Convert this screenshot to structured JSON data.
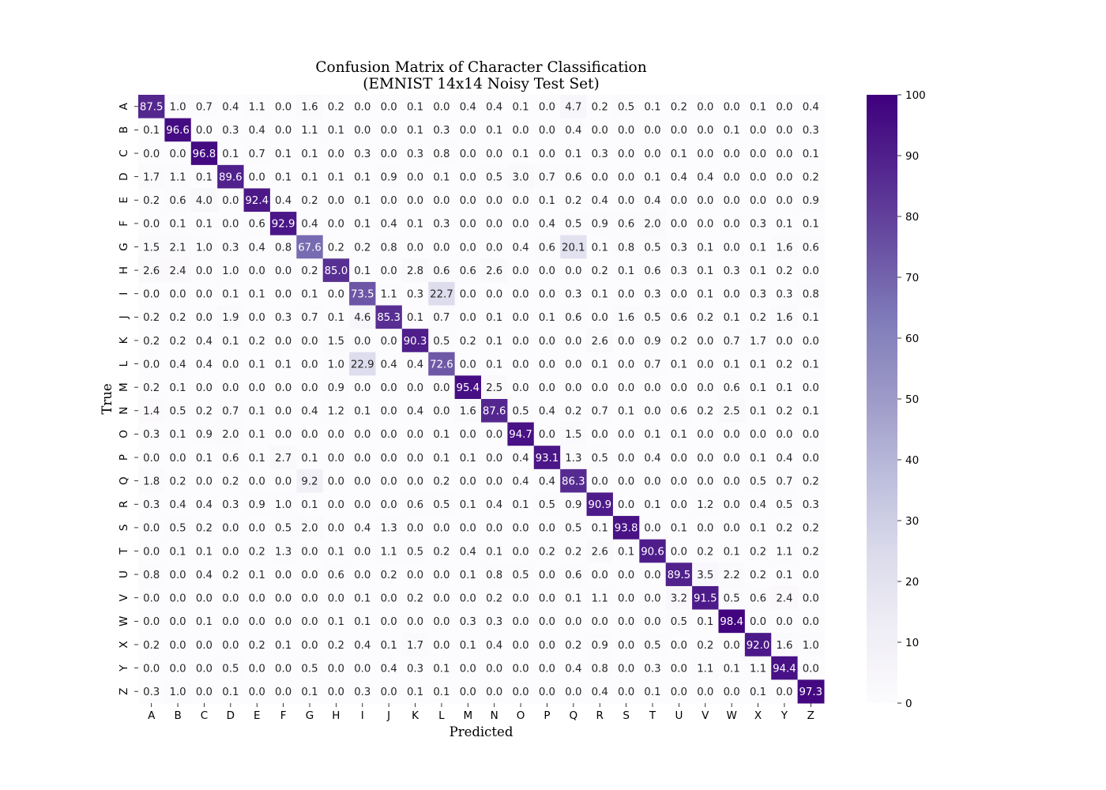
{
  "chart_data": {
    "type": "heatmap",
    "title": "Confusion Matrix of Character Classification",
    "subtitle": "(EMNIST 14x14 Noisy Test Set)",
    "xlabel": "Predicted",
    "ylabel": "True",
    "x_categories": [
      "A",
      "B",
      "C",
      "D",
      "E",
      "F",
      "G",
      "H",
      "I",
      "J",
      "K",
      "L",
      "M",
      "N",
      "O",
      "P",
      "Q",
      "R",
      "S",
      "T",
      "U",
      "V",
      "W",
      "X",
      "Y",
      "Z"
    ],
    "y_categories": [
      "A",
      "B",
      "C",
      "D",
      "E",
      "F",
      "G",
      "H",
      "I",
      "J",
      "K",
      "L",
      "M",
      "N",
      "O",
      "P",
      "Q",
      "R",
      "S",
      "T",
      "U",
      "V",
      "W",
      "X",
      "Y",
      "Z"
    ],
    "values": [
      [
        87.5,
        1.0,
        0.7,
        0.4,
        1.1,
        0.0,
        1.6,
        0.2,
        0.0,
        0.0,
        0.1,
        0.0,
        0.4,
        0.4,
        0.1,
        0.0,
        4.7,
        0.2,
        0.5,
        0.1,
        0.2,
        0.0,
        0.0,
        0.1,
        0.0,
        0.4
      ],
      [
        0.1,
        96.6,
        0.0,
        0.3,
        0.4,
        0.0,
        1.1,
        0.1,
        0.0,
        0.0,
        0.1,
        0.3,
        0.0,
        0.1,
        0.0,
        0.0,
        0.4,
        0.0,
        0.0,
        0.0,
        0.0,
        0.0,
        0.1,
        0.0,
        0.0,
        0.3
      ],
      [
        0.0,
        0.0,
        96.8,
        0.1,
        0.7,
        0.1,
        0.1,
        0.0,
        0.3,
        0.0,
        0.3,
        0.8,
        0.0,
        0.0,
        0.1,
        0.0,
        0.1,
        0.3,
        0.0,
        0.0,
        0.1,
        0.0,
        0.0,
        0.0,
        0.0,
        0.1
      ],
      [
        1.7,
        1.1,
        0.1,
        89.6,
        0.0,
        0.1,
        0.1,
        0.1,
        0.1,
        0.9,
        0.0,
        0.1,
        0.0,
        0.5,
        3.0,
        0.7,
        0.6,
        0.0,
        0.0,
        0.1,
        0.4,
        0.4,
        0.0,
        0.0,
        0.0,
        0.2
      ],
      [
        0.2,
        0.6,
        4.0,
        0.0,
        92.4,
        0.4,
        0.2,
        0.0,
        0.1,
        0.0,
        0.0,
        0.0,
        0.0,
        0.0,
        0.0,
        0.1,
        0.2,
        0.4,
        0.0,
        0.4,
        0.0,
        0.0,
        0.0,
        0.0,
        0.0,
        0.9
      ],
      [
        0.0,
        0.1,
        0.1,
        0.0,
        0.6,
        92.9,
        0.4,
        0.0,
        0.1,
        0.4,
        0.1,
        0.3,
        0.0,
        0.0,
        0.0,
        0.4,
        0.5,
        0.9,
        0.6,
        2.0,
        0.0,
        0.0,
        0.0,
        0.3,
        0.1,
        0.1
      ],
      [
        1.5,
        2.1,
        1.0,
        0.3,
        0.4,
        0.8,
        67.6,
        0.2,
        0.2,
        0.8,
        0.0,
        0.0,
        0.0,
        0.0,
        0.4,
        0.6,
        20.1,
        0.1,
        0.8,
        0.5,
        0.3,
        0.1,
        0.0,
        0.1,
        1.6,
        0.6
      ],
      [
        2.6,
        2.4,
        0.0,
        1.0,
        0.0,
        0.0,
        0.2,
        85.0,
        0.1,
        0.0,
        2.8,
        0.6,
        0.6,
        2.6,
        0.0,
        0.0,
        0.0,
        0.2,
        0.1,
        0.6,
        0.3,
        0.1,
        0.3,
        0.1,
        0.2,
        0.0
      ],
      [
        0.0,
        0.0,
        0.0,
        0.1,
        0.1,
        0.0,
        0.1,
        0.0,
        73.5,
        1.1,
        0.3,
        22.7,
        0.0,
        0.0,
        0.0,
        0.0,
        0.3,
        0.1,
        0.0,
        0.3,
        0.0,
        0.1,
        0.0,
        0.3,
        0.3,
        0.8
      ],
      [
        0.2,
        0.2,
        0.0,
        1.9,
        0.0,
        0.3,
        0.7,
        0.1,
        4.6,
        85.3,
        0.1,
        0.7,
        0.0,
        0.1,
        0.0,
        0.1,
        0.6,
        0.0,
        1.6,
        0.5,
        0.6,
        0.2,
        0.1,
        0.2,
        1.6,
        0.1
      ],
      [
        0.2,
        0.2,
        0.4,
        0.1,
        0.2,
        0.0,
        0.0,
        1.5,
        0.0,
        0.0,
        90.3,
        0.5,
        0.2,
        0.1,
        0.0,
        0.0,
        0.0,
        2.6,
        0.0,
        0.9,
        0.2,
        0.0,
        0.7,
        1.7,
        0.0,
        0.0
      ],
      [
        0.0,
        0.4,
        0.4,
        0.0,
        0.1,
        0.1,
        0.0,
        1.0,
        22.9,
        0.4,
        0.4,
        72.6,
        0.0,
        0.1,
        0.0,
        0.0,
        0.0,
        0.1,
        0.0,
        0.7,
        0.1,
        0.0,
        0.1,
        0.1,
        0.2,
        0.1
      ],
      [
        0.2,
        0.1,
        0.0,
        0.0,
        0.0,
        0.0,
        0.0,
        0.9,
        0.0,
        0.0,
        0.0,
        0.0,
        95.4,
        2.5,
        0.0,
        0.0,
        0.0,
        0.0,
        0.0,
        0.0,
        0.0,
        0.0,
        0.6,
        0.1,
        0.1,
        0.0
      ],
      [
        1.4,
        0.5,
        0.2,
        0.7,
        0.1,
        0.0,
        0.4,
        1.2,
        0.1,
        0.0,
        0.4,
        0.0,
        1.6,
        87.6,
        0.5,
        0.4,
        0.2,
        0.7,
        0.1,
        0.0,
        0.6,
        0.2,
        2.5,
        0.1,
        0.2,
        0.1
      ],
      [
        0.3,
        0.1,
        0.9,
        2.0,
        0.1,
        0.0,
        0.0,
        0.0,
        0.0,
        0.0,
        0.0,
        0.1,
        0.0,
        0.0,
        94.7,
        0.0,
        1.5,
        0.0,
        0.0,
        0.1,
        0.1,
        0.0,
        0.0,
        0.0,
        0.0,
        0.0
      ],
      [
        0.0,
        0.0,
        0.1,
        0.6,
        0.1,
        2.7,
        0.1,
        0.0,
        0.0,
        0.0,
        0.0,
        0.1,
        0.1,
        0.0,
        0.4,
        93.1,
        1.3,
        0.5,
        0.0,
        0.4,
        0.0,
        0.0,
        0.0,
        0.1,
        0.4,
        0.0
      ],
      [
        1.8,
        0.2,
        0.0,
        0.2,
        0.0,
        0.0,
        9.2,
        0.0,
        0.0,
        0.0,
        0.0,
        0.2,
        0.0,
        0.0,
        0.4,
        0.4,
        86.3,
        0.0,
        0.0,
        0.0,
        0.0,
        0.0,
        0.0,
        0.5,
        0.7,
        0.2
      ],
      [
        0.3,
        0.4,
        0.4,
        0.3,
        0.9,
        1.0,
        0.1,
        0.0,
        0.0,
        0.0,
        0.6,
        0.5,
        0.1,
        0.4,
        0.1,
        0.5,
        0.9,
        90.9,
        0.0,
        0.1,
        0.0,
        1.2,
        0.0,
        0.4,
        0.5,
        0.3
      ],
      [
        0.0,
        0.5,
        0.2,
        0.0,
        0.0,
        0.5,
        2.0,
        0.0,
        0.4,
        1.3,
        0.0,
        0.0,
        0.0,
        0.0,
        0.0,
        0.0,
        0.5,
        0.1,
        93.8,
        0.0,
        0.1,
        0.0,
        0.0,
        0.1,
        0.2,
        0.2
      ],
      [
        0.0,
        0.1,
        0.1,
        0.0,
        0.2,
        1.3,
        0.0,
        0.1,
        0.0,
        1.1,
        0.5,
        0.2,
        0.4,
        0.1,
        0.0,
        0.2,
        0.2,
        2.6,
        0.1,
        90.6,
        0.0,
        0.2,
        0.1,
        0.2,
        1.1,
        0.2
      ],
      [
        0.8,
        0.0,
        0.4,
        0.2,
        0.1,
        0.0,
        0.0,
        0.6,
        0.0,
        0.2,
        0.0,
        0.0,
        0.1,
        0.8,
        0.5,
        0.0,
        0.6,
        0.0,
        0.0,
        0.0,
        89.5,
        3.5,
        2.2,
        0.2,
        0.1,
        0.0
      ],
      [
        0.0,
        0.0,
        0.0,
        0.0,
        0.0,
        0.0,
        0.0,
        0.0,
        0.1,
        0.0,
        0.2,
        0.0,
        0.0,
        0.2,
        0.0,
        0.0,
        0.1,
        1.1,
        0.0,
        0.0,
        3.2,
        91.5,
        0.5,
        0.6,
        2.4,
        0.0
      ],
      [
        0.0,
        0.0,
        0.1,
        0.0,
        0.0,
        0.0,
        0.0,
        0.1,
        0.1,
        0.0,
        0.0,
        0.0,
        0.3,
        0.3,
        0.0,
        0.0,
        0.0,
        0.0,
        0.0,
        0.0,
        0.5,
        0.1,
        98.4,
        0.0,
        0.0,
        0.0
      ],
      [
        0.2,
        0.0,
        0.0,
        0.0,
        0.2,
        0.1,
        0.0,
        0.2,
        0.4,
        0.1,
        1.7,
        0.0,
        0.1,
        0.4,
        0.0,
        0.0,
        0.2,
        0.9,
        0.0,
        0.5,
        0.0,
        0.2,
        0.0,
        92.0,
        1.6,
        1.0
      ],
      [
        0.0,
        0.0,
        0.0,
        0.5,
        0.0,
        0.0,
        0.5,
        0.0,
        0.0,
        0.4,
        0.3,
        0.1,
        0.0,
        0.0,
        0.0,
        0.0,
        0.4,
        0.8,
        0.0,
        0.3,
        0.0,
        1.1,
        0.1,
        1.1,
        94.4,
        0.0
      ],
      [
        0.3,
        1.0,
        0.0,
        0.1,
        0.0,
        0.0,
        0.1,
        0.0,
        0.3,
        0.0,
        0.1,
        0.1,
        0.0,
        0.0,
        0.0,
        0.0,
        0.0,
        0.4,
        0.0,
        0.1,
        0.0,
        0.0,
        0.0,
        0.1,
        0.0,
        97.3
      ]
    ],
    "colormap": "Purples",
    "colormap_stops": [
      "#fcfbfd",
      "#efedf5",
      "#dadaeb",
      "#bcbddc",
      "#9e9ac8",
      "#807dba",
      "#6a51a3",
      "#54278f",
      "#3f007d"
    ],
    "vmin": 0,
    "vmax": 100,
    "colorbar_ticks": [
      "0",
      "10",
      "20",
      "30",
      "40",
      "50",
      "60",
      "70",
      "80",
      "90",
      "100"
    ],
    "grid": false,
    "annotations": "cell values shown in each cell"
  }
}
